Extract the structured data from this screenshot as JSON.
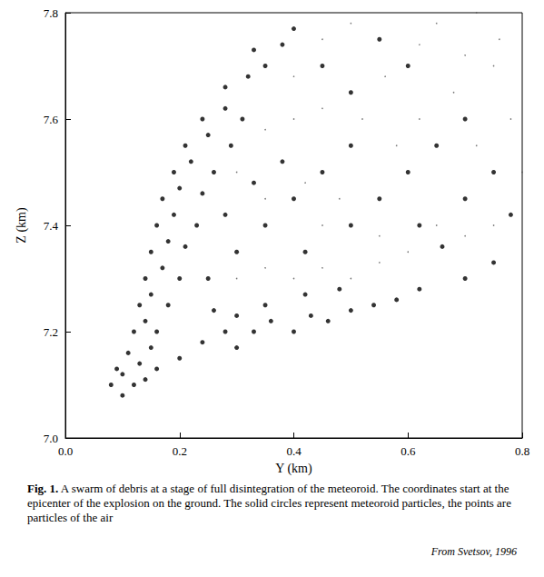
{
  "chart_data": {
    "type": "scatter",
    "caption_label": "Fig. 1.",
    "caption": "A swarm of debris at a stage of full disintegration of the meteoroid. The coordinates start at the epicenter of the explosion on the ground. The solid circles represent meteoroid particles, the points are particles of the air",
    "source": "From Svetsov, 1996",
    "x_label": "Y (km)",
    "y_label": "Z (km)",
    "xlim": [
      0,
      0.8
    ],
    "xticks": [
      {
        "value": 0,
        "label": "0.0"
      },
      0.2,
      0.4,
      0.6,
      0.8
    ],
    "ylim": [
      7.0,
      7.8
    ],
    "yticks": [
      {
        "value": 7.0,
        "label": "7.0"
      },
      7.2,
      7.4,
      7.6,
      7.8
    ],
    "grid": false,
    "series": [
      {
        "marker": "point",
        "color": "#555555",
        "x": [
          0.3,
          0.35,
          0.4,
          0.45,
          0.5,
          0.55,
          0.6,
          0.65,
          0.7,
          0.75,
          0.45,
          0.55,
          0.35,
          0.42,
          0.48,
          0.58,
          0.62,
          0.68,
          0.72,
          0.78,
          0.4,
          0.45,
          0.52,
          0.56,
          0.62,
          0.5,
          0.45,
          0.65,
          0.7,
          0.75,
          0.3,
          0.35,
          0.4,
          0.8,
          0.76,
          0.72
        ],
        "values": [
          7.3,
          7.32,
          7.3,
          7.32,
          7.3,
          7.33,
          7.35,
          7.4,
          7.38,
          7.4,
          7.4,
          7.38,
          7.45,
          7.48,
          7.45,
          7.55,
          7.6,
          7.65,
          7.55,
          7.6,
          7.6,
          7.62,
          7.6,
          7.68,
          7.74,
          7.78,
          7.75,
          7.78,
          7.72,
          7.7,
          7.5,
          7.58,
          7.68,
          7.5,
          7.75,
          7.8
        ]
      },
      {
        "marker": "circle",
        "color": "#000000",
        "x": [
          0.08,
          0.1,
          0.12,
          0.1,
          0.14,
          0.13,
          0.09,
          0.16,
          0.11,
          0.15,
          0.12,
          0.14,
          0.16,
          0.13,
          0.15,
          0.18,
          0.14,
          0.17,
          0.2,
          0.15,
          0.18,
          0.21,
          0.16,
          0.19,
          0.23,
          0.17,
          0.2,
          0.24,
          0.19,
          0.22,
          0.26,
          0.21,
          0.25,
          0.29,
          0.24,
          0.28,
          0.31,
          0.28,
          0.32,
          0.35,
          0.33,
          0.38,
          0.4,
          0.2,
          0.24,
          0.28,
          0.3,
          0.33,
          0.36,
          0.4,
          0.43,
          0.46,
          0.5,
          0.54,
          0.58,
          0.35,
          0.42,
          0.48,
          0.3,
          0.26,
          0.62,
          0.7,
          0.75,
          0.25,
          0.3,
          0.35,
          0.28,
          0.4,
          0.45,
          0.5,
          0.38,
          0.33,
          0.55,
          0.6,
          0.65,
          0.7,
          0.5,
          0.45,
          0.6,
          0.55,
          0.7,
          0.75,
          0.78,
          0.5,
          0.42,
          0.62,
          0.66
        ],
        "values": [
          7.1,
          7.08,
          7.1,
          7.12,
          7.11,
          7.14,
          7.13,
          7.13,
          7.16,
          7.17,
          7.2,
          7.22,
          7.2,
          7.25,
          7.27,
          7.25,
          7.3,
          7.32,
          7.3,
          7.35,
          7.37,
          7.36,
          7.4,
          7.42,
          7.4,
          7.45,
          7.47,
          7.46,
          7.5,
          7.52,
          7.5,
          7.55,
          7.57,
          7.55,
          7.6,
          7.62,
          7.6,
          7.66,
          7.68,
          7.7,
          7.73,
          7.74,
          7.77,
          7.15,
          7.18,
          7.2,
          7.17,
          7.2,
          7.22,
          7.2,
          7.23,
          7.22,
          7.24,
          7.25,
          7.26,
          7.25,
          7.27,
          7.28,
          7.23,
          7.24,
          7.28,
          7.3,
          7.33,
          7.3,
          7.35,
          7.4,
          7.42,
          7.45,
          7.5,
          7.55,
          7.52,
          7.48,
          7.45,
          7.5,
          7.55,
          7.45,
          7.65,
          7.7,
          7.7,
          7.75,
          7.6,
          7.5,
          7.42,
          7.4,
          7.35,
          7.4,
          7.36
        ]
      }
    ]
  }
}
